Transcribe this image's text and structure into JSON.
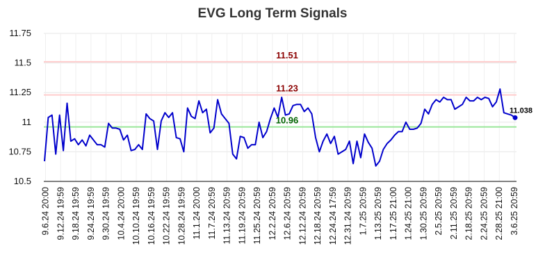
{
  "chart_data": {
    "type": "line",
    "title": "EVG Long Term Signals",
    "xlabel": "",
    "ylabel": "",
    "ylim": [
      10.5,
      11.75
    ],
    "yticks": [
      "10.5",
      "10.75",
      "11",
      "11.25",
      "11.5",
      "11.75"
    ],
    "xticks": [
      "9.6.24 20:00",
      "9.12.24 19:59",
      "9.18.24 19:59",
      "9.24.24 19:59",
      "9.30.24 19:59",
      "10.4.24 20:00",
      "10.10.24 19:59",
      "10.16.24 19:59",
      "10.22.24 19:59",
      "10.28.24 19:59",
      "11.1.24 20:00",
      "11.7.24 20:59",
      "11.13.24 20:59",
      "11.19.24 20:59",
      "11.25.24 20:59",
      "12.2.24 20:59",
      "12.6.24 20:59",
      "12.12.24 20:59",
      "12.18.24 20:59",
      "12.24.24 17:59",
      "12.31.24 20:59",
      "1.7.25 20:59",
      "1.13.25 20:59",
      "1.17.25 21:00",
      "1.24.25 21:00",
      "1.30.25 20:59",
      "2.5.25 20:59",
      "2.11.25 20:59",
      "2.18.25 20:59",
      "2.24.25 20:59",
      "2.28.25 21:00",
      "3.6.25 20:59"
    ],
    "grid": true,
    "series": [
      {
        "color": "#0000cc",
        "values": [
          10.67,
          11.04,
          11.06,
          10.73,
          11.06,
          10.76,
          11.16,
          10.84,
          10.86,
          10.81,
          10.85,
          10.8,
          10.89,
          10.85,
          10.81,
          10.81,
          10.79,
          10.99,
          10.95,
          10.95,
          10.94,
          10.85,
          10.89,
          10.76,
          10.77,
          10.81,
          10.77,
          11.07,
          11.03,
          11.01,
          10.77,
          11.01,
          11.08,
          11.04,
          11.08,
          10.87,
          10.86,
          10.75,
          11.12,
          11.05,
          11.03,
          11.18,
          11.08,
          11.11,
          10.91,
          10.95,
          11.19,
          11.07,
          11.03,
          10.99,
          10.73,
          10.69,
          10.88,
          10.87,
          10.78,
          10.81,
          10.81,
          11.0,
          10.87,
          10.92,
          11.03,
          11.12,
          11.04,
          11.21,
          11.06,
          11.07,
          11.14,
          11.15,
          11.15,
          11.09,
          11.12,
          11.07,
          10.87,
          10.75,
          10.84,
          10.9,
          10.82,
          10.88,
          10.73,
          10.75,
          10.77,
          10.84,
          10.65,
          10.84,
          10.7,
          10.9,
          10.83,
          10.78,
          10.63,
          10.67,
          10.77,
          10.82,
          10.85,
          10.89,
          10.92,
          10.92,
          11.0,
          10.94,
          10.94,
          10.95,
          10.99,
          11.11,
          11.07,
          11.15,
          11.19,
          11.17,
          11.21,
          11.19,
          11.19,
          11.11,
          11.13,
          11.15,
          11.21,
          11.18,
          11.18,
          11.21,
          11.19,
          11.21,
          11.2,
          11.13,
          11.17,
          11.28,
          11.08,
          11.07,
          11.06,
          11.038
        ]
      }
    ],
    "levels": [
      {
        "value": 11.51,
        "label": "11.51",
        "line_color": "#ffcccc",
        "text_color": "#8b0000"
      },
      {
        "value": 11.23,
        "label": "11.23",
        "line_color": "#ffcccc",
        "text_color": "#8b0000"
      },
      {
        "value": 10.96,
        "label": "10.96",
        "line_color": "#99e699",
        "text_color": "#006400"
      }
    ],
    "last_value": {
      "label": "11.038",
      "marker_color": "#0000cc"
    }
  }
}
